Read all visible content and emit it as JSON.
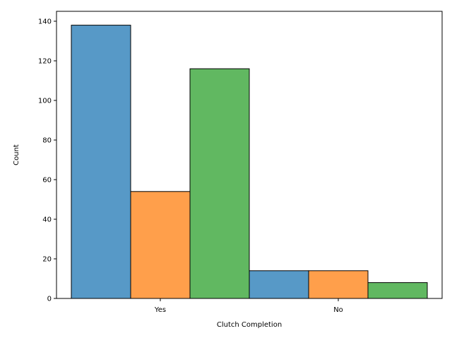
{
  "chart_data": {
    "type": "bar",
    "title": "",
    "xlabel": "Clutch Completion",
    "ylabel": "Count",
    "categories": [
      "Yes",
      "No"
    ],
    "series": [
      {
        "color": "#5799c7",
        "values": [
          138,
          14
        ]
      },
      {
        "color": "#ff9f4b",
        "values": [
          54,
          14
        ]
      },
      {
        "color": "#61b861",
        "values": [
          116,
          8
        ]
      }
    ],
    "ylim": [
      0,
      145
    ],
    "yticks": [
      0,
      20,
      40,
      60,
      80,
      100,
      120,
      140
    ],
    "grid": false,
    "legend": "none",
    "bar_edge_color": "#000000"
  }
}
